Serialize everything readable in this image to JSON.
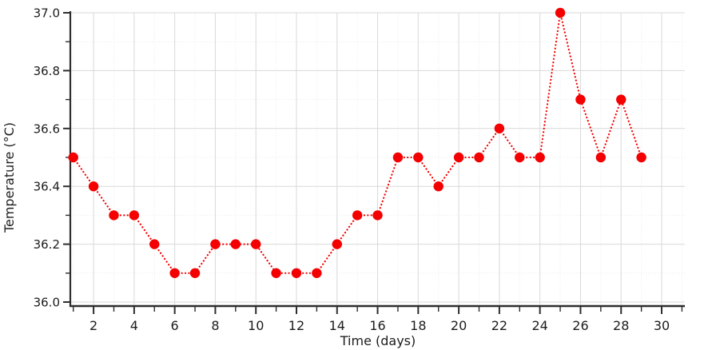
{
  "chart_data": {
    "type": "line",
    "title": "",
    "xlabel": "Time (days)",
    "ylabel": "Temperature (°C)",
    "legend_position": "none",
    "grid": "major-solid + minor-dotted",
    "line_style": "dotted",
    "marker": "filled-circle",
    "series": [
      {
        "name": "Temperature",
        "x": [
          1,
          2,
          3,
          4,
          5,
          6,
          7,
          8,
          9,
          10,
          11,
          12,
          13,
          14,
          15,
          16,
          17,
          18,
          19,
          20,
          21,
          22,
          23,
          24,
          25,
          26,
          27,
          28,
          29
        ],
        "y": [
          36.5,
          36.4,
          36.3,
          36.3,
          36.2,
          36.1,
          36.1,
          36.2,
          36.2,
          36.2,
          36.1,
          36.1,
          36.1,
          36.2,
          36.3,
          36.3,
          36.5,
          36.5,
          36.4,
          36.5,
          36.5,
          36.6,
          36.5,
          36.5,
          37.0,
          36.7,
          36.5,
          36.7,
          36.5
        ]
      }
    ],
    "xlim": [
      0.85,
      31.05
    ],
    "ylim": [
      35.99,
      37.0
    ],
    "xticks_major": [
      2,
      4,
      6,
      8,
      10,
      12,
      14,
      16,
      18,
      20,
      22,
      24,
      26,
      28,
      30
    ],
    "xticks_minor": [
      1,
      3,
      5,
      7,
      9,
      11,
      13,
      15,
      17,
      19,
      21,
      23,
      25,
      27,
      29,
      31
    ],
    "yticks_major": [
      36.0,
      36.2,
      36.4,
      36.6,
      36.8,
      37.0
    ],
    "ytick_labels": [
      "36.0",
      "36.2",
      "36.4",
      "36.6",
      "36.8",
      "37.0"
    ],
    "yticks_minor": [
      36.1,
      36.3,
      36.5,
      36.7,
      36.9
    ],
    "colors": {
      "series": "#f40000",
      "grid_major": "#d9d9d9",
      "grid_minor": "#ebebeb",
      "axis": "#2e2e2e",
      "text": "#1c1c1c"
    }
  }
}
